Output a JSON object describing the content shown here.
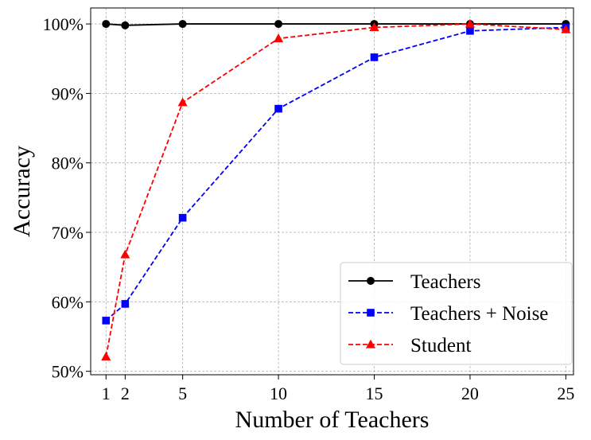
{
  "chart_data": {
    "type": "line",
    "xlabel": "Number of Teachers",
    "ylabel": "Accuracy",
    "x_ticks": [
      1,
      2,
      5,
      10,
      15,
      20,
      25
    ],
    "y_ticks": [
      50,
      60,
      70,
      80,
      90,
      100
    ],
    "y_tick_labels": [
      "50%",
      "60%",
      "70%",
      "80%",
      "90%",
      "100%"
    ],
    "xlim": [
      0.2,
      25.4
    ],
    "ylim": [
      49.5,
      102.3
    ],
    "grid": true,
    "legend_position": "bottom-right",
    "series": [
      {
        "name": "Teachers",
        "color": "#000000",
        "marker": "circle",
        "line_style": "solid",
        "x": [
          1,
          2,
          5,
          10,
          15,
          20,
          25
        ],
        "values": [
          100.0,
          99.8,
          100.0,
          100.0,
          100.0,
          100.0,
          100.0
        ]
      },
      {
        "name": "Teachers + Noise",
        "color": "#0000ff",
        "marker": "square",
        "line_style": "dashed",
        "x": [
          1,
          2,
          5,
          10,
          15,
          20,
          25
        ],
        "values": [
          57.3,
          59.7,
          72.1,
          87.8,
          95.2,
          99.0,
          99.5
        ]
      },
      {
        "name": "Student",
        "color": "#ff0000",
        "marker": "triangle",
        "line_style": "dashed",
        "x": [
          1,
          2,
          5,
          10,
          15,
          20,
          25
        ],
        "values": [
          52.1,
          66.8,
          88.7,
          97.9,
          99.5,
          100.0,
          99.2
        ]
      }
    ]
  }
}
